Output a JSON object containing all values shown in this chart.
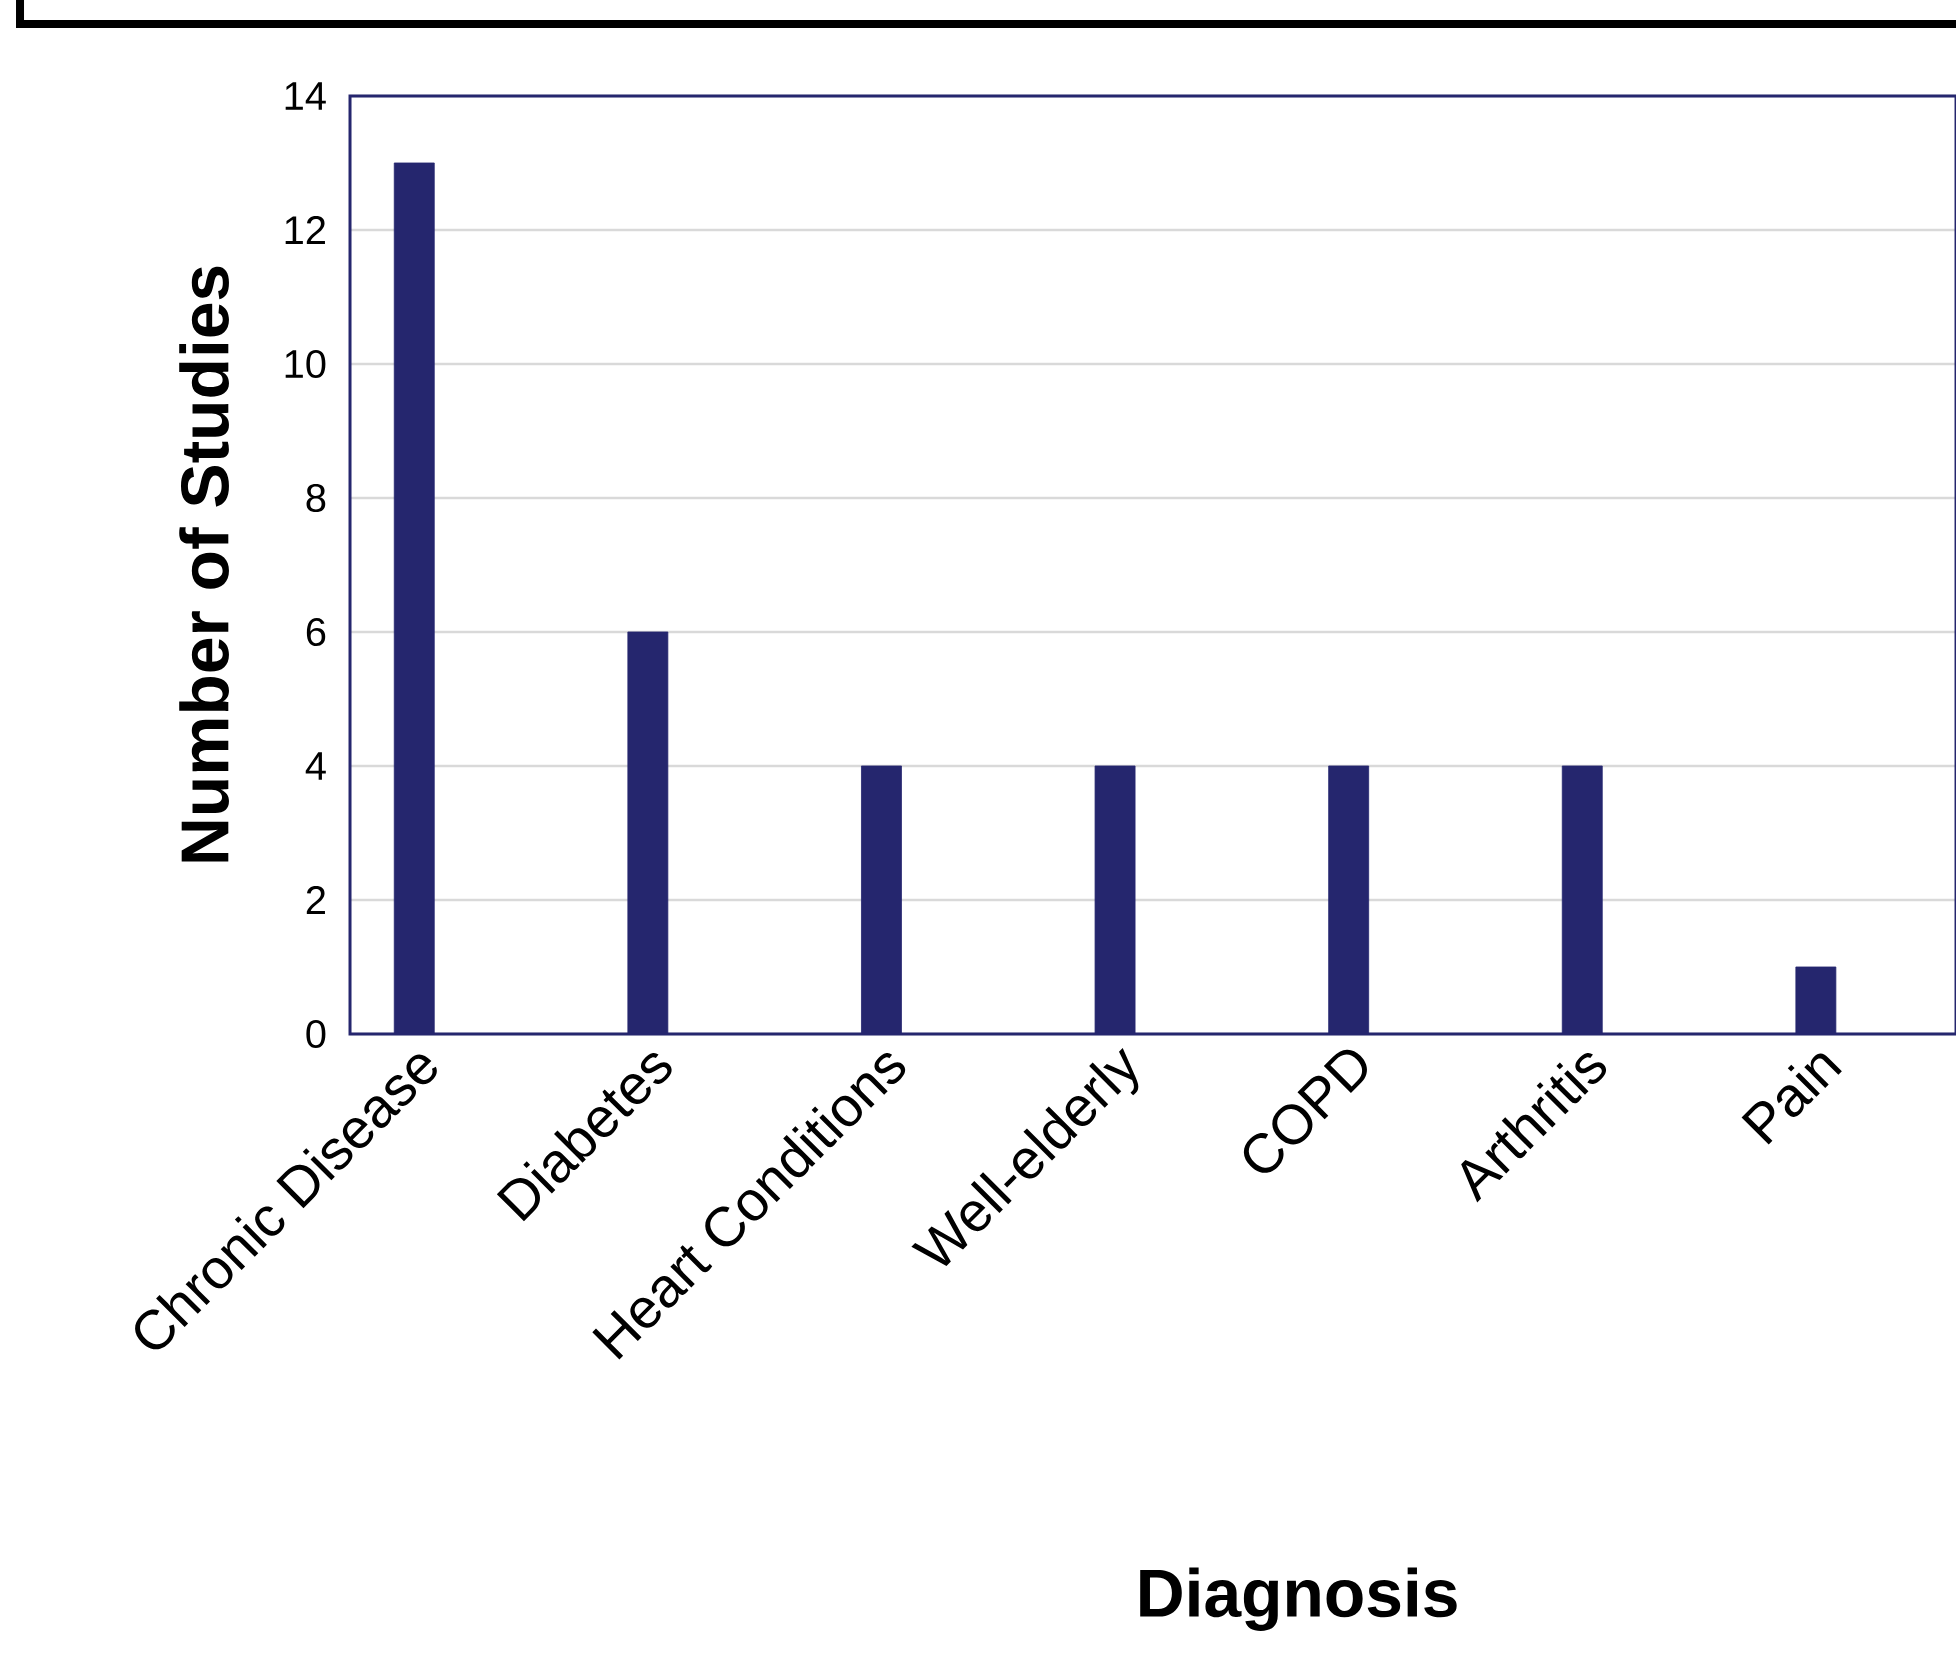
{
  "chart_data": {
    "type": "bar",
    "xlabel": "Diagnosis",
    "ylabel": "Number of Studies",
    "categories": [
      "Chronic Disease",
      "Diabetes",
      "Heart Conditions",
      "Well-elderly",
      "COPD",
      "Arthritis",
      "Pain"
    ],
    "values": [
      13,
      6,
      4,
      4,
      4,
      4,
      1
    ],
    "color": "#25266e",
    "ylim": [
      0,
      14
    ],
    "yticks": [
      0,
      2,
      4,
      6,
      8,
      10,
      12,
      14
    ],
    "grid": "y"
  }
}
